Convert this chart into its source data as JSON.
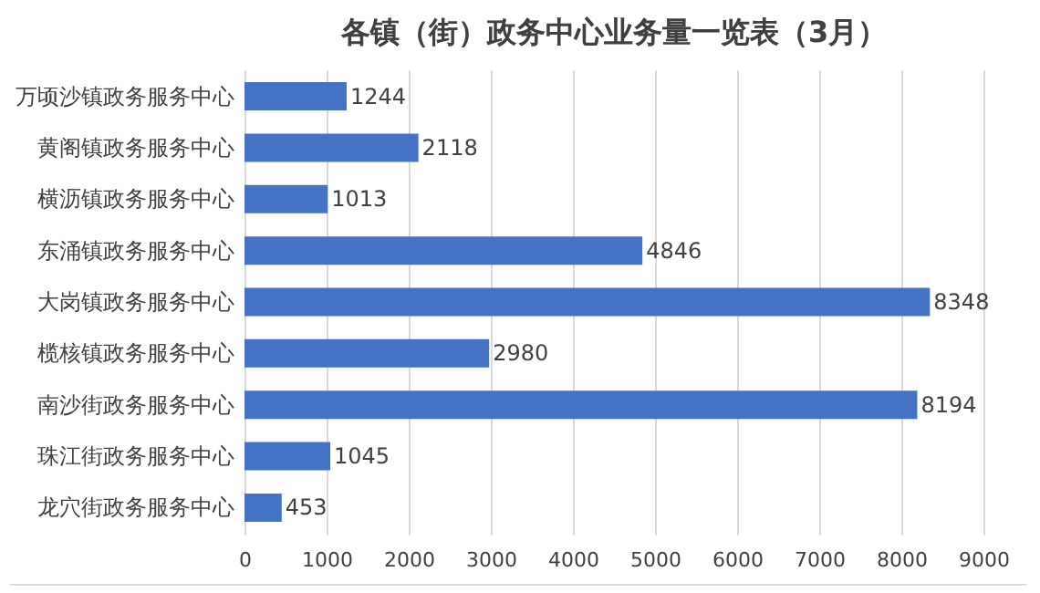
{
  "chart_data": {
    "type": "bar",
    "orientation": "horizontal",
    "title": "各镇（街）政务中心业务量一览表（3月）",
    "categories": [
      "万顷沙镇政务服务中心",
      "黄阁镇政务服务中心",
      "横沥镇政务服务中心",
      "东涌镇政务服务中心",
      "大岗镇政务服务中心",
      "榄核镇政务服务中心",
      "南沙街政务服务中心",
      "珠江街政务服务中心",
      "龙穴街政务服务中心"
    ],
    "values": [
      1244,
      2118,
      1013,
      4846,
      8348,
      2980,
      8194,
      1045,
      453
    ],
    "color": "#4472c4",
    "xlim": [
      0,
      9000
    ],
    "xticks": [
      0,
      1000,
      2000,
      3000,
      4000,
      5000,
      6000,
      7000,
      8000,
      9000
    ],
    "grid": "x",
    "data_labels": true
  }
}
